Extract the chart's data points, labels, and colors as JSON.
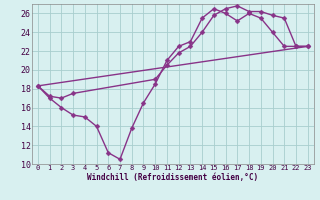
{
  "line1_x": [
    0,
    1,
    2,
    3,
    4,
    5,
    6,
    7,
    8,
    9,
    10,
    11,
    12,
    13,
    14,
    15,
    16,
    17,
    18,
    19,
    20,
    21,
    22,
    23
  ],
  "line1_y": [
    18.3,
    17.0,
    16.0,
    15.2,
    15.0,
    14.0,
    11.2,
    10.5,
    13.8,
    16.5,
    18.5,
    21.0,
    22.5,
    23.0,
    25.5,
    26.5,
    26.0,
    25.2,
    26.0,
    25.5,
    24.0,
    22.5,
    22.5,
    22.5
  ],
  "line2_x": [
    0,
    1,
    2,
    3,
    10,
    11,
    12,
    13,
    14,
    15,
    16,
    17,
    18,
    19,
    20,
    21,
    22,
    23
  ],
  "line2_y": [
    18.3,
    17.2,
    17.0,
    17.5,
    19.0,
    20.5,
    21.8,
    22.5,
    24.0,
    25.8,
    26.5,
    26.8,
    26.2,
    26.2,
    25.8,
    25.5,
    22.5,
    22.5
  ],
  "line3_x": [
    0,
    23
  ],
  "line3_y": [
    18.3,
    22.5
  ],
  "color": "#883388",
  "bg_color": "#d8f0f0",
  "grid_color": "#a8cece",
  "xlim_min": -0.5,
  "xlim_max": 23.5,
  "ylim_min": 10,
  "ylim_max": 27,
  "yticks": [
    10,
    12,
    14,
    16,
    18,
    20,
    22,
    24,
    26
  ],
  "xticks": [
    0,
    1,
    2,
    3,
    4,
    5,
    6,
    7,
    8,
    9,
    10,
    11,
    12,
    13,
    14,
    15,
    16,
    17,
    18,
    19,
    20,
    21,
    22,
    23
  ],
  "xlabel": "Windchill (Refroidissement éolien,°C)",
  "markersize": 2.5,
  "linewidth": 1.0,
  "tick_fontsize": 5.0,
  "xlabel_fontsize": 5.5
}
